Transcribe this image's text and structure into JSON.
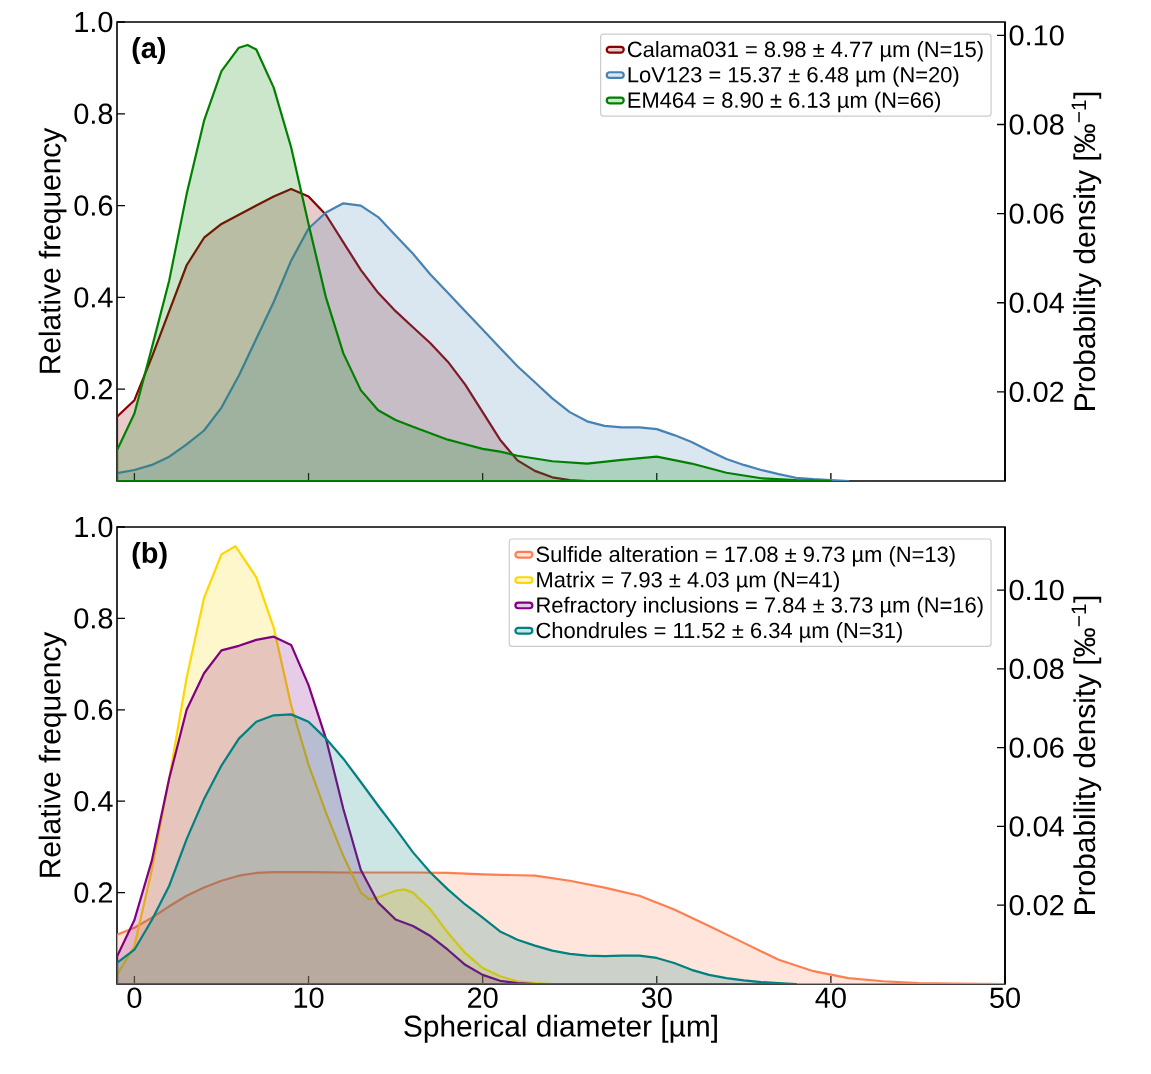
{
  "chart_data": [
    {
      "type": "area",
      "annotations": [
        "(a)"
      ],
      "ylabel": "Relative frequency",
      "y2label": "Probability density [‰$^{−1}$]",
      "xlim": [
        -1,
        50
      ],
      "xticks": [
        0,
        10,
        20,
        30,
        40,
        50
      ],
      "ylim": [
        0,
        1
      ],
      "yticks": [
        0.2,
        0.4,
        0.6,
        0.8,
        {
          "value": 1,
          "label": "1.0"
        }
      ],
      "y2lim": [
        0,
        0.103
      ],
      "y2ticks": [
        0.02,
        0.04,
        0.06,
        0.08,
        {
          "value": 0.1,
          "label": "0.10"
        }
      ],
      "tick_labels": "y",
      "legend": "top right",
      "series": [
        {
          "name": "Calama031 = 8.98 ± 4.77 µm (N=15)",
          "color": "#8b0000",
          "x": [
            -1,
            0,
            1,
            2,
            3,
            4,
            5,
            6,
            7,
            8,
            9,
            10,
            11,
            12,
            13,
            14,
            15,
            16,
            17,
            18,
            19,
            20,
            21,
            22,
            23,
            24,
            25,
            26
          ],
          "values": [
            0.14,
            0.176,
            0.27,
            0.37,
            0.47,
            0.53,
            0.56,
            0.58,
            0.6,
            0.62,
            0.636,
            0.62,
            0.58,
            0.52,
            0.46,
            0.41,
            0.37,
            0.335,
            0.3,
            0.26,
            0.21,
            0.15,
            0.09,
            0.045,
            0.022,
            0.008,
            0.002,
            0
          ]
        },
        {
          "name": "LoV123 = 15.37 ± 6.48 µm (N=20)",
          "color": "#4682b4",
          "x": [
            -1,
            0,
            1,
            2,
            3,
            4,
            5,
            6,
            7,
            8,
            9,
            10,
            11,
            12,
            13,
            14,
            15,
            16,
            17,
            18,
            19,
            20,
            21,
            22,
            23,
            24,
            25,
            26,
            27,
            28,
            29,
            30,
            31,
            32,
            33,
            34,
            35,
            36,
            37,
            38,
            39,
            40,
            41
          ],
          "values": [
            0.017,
            0.024,
            0.035,
            0.053,
            0.08,
            0.11,
            0.16,
            0.23,
            0.31,
            0.39,
            0.48,
            0.55,
            0.585,
            0.605,
            0.6,
            0.575,
            0.535,
            0.495,
            0.45,
            0.41,
            0.37,
            0.33,
            0.29,
            0.25,
            0.215,
            0.18,
            0.15,
            0.13,
            0.12,
            0.117,
            0.117,
            0.113,
            0.1,
            0.085,
            0.066,
            0.048,
            0.035,
            0.024,
            0.015,
            0.007,
            0.004,
            0.002,
            0
          ]
        },
        {
          "name": "EM464 = 8.90 ± 6.13 µm (N=66)",
          "color": "#008000",
          "x": [
            -1,
            0,
            1,
            2,
            3,
            4,
            5,
            6,
            6.5,
            7,
            8,
            9,
            10,
            11,
            12,
            13,
            14,
            15,
            16,
            17,
            18,
            19,
            20,
            21,
            22,
            24,
            26,
            28,
            30,
            32,
            34,
            36,
            38,
            40
          ],
          "values": [
            0.067,
            0.147,
            0.29,
            0.437,
            0.625,
            0.785,
            0.893,
            0.944,
            0.95,
            0.94,
            0.857,
            0.727,
            0.56,
            0.4,
            0.278,
            0.198,
            0.154,
            0.133,
            0.118,
            0.104,
            0.09,
            0.08,
            0.07,
            0.064,
            0.055,
            0.043,
            0.038,
            0.046,
            0.053,
            0.038,
            0.018,
            0.006,
            0.002,
            0
          ]
        }
      ]
    },
    {
      "type": "area",
      "annotations": [
        "(b)"
      ],
      "xlabel": "Spherical diameter [µm]",
      "ylabel": "Relative frequency",
      "y2label": "Probability density [‰$^{−1}$]",
      "xlim": [
        -1,
        50
      ],
      "xticks": [
        0,
        10,
        20,
        30,
        40,
        50
      ],
      "ylim": [
        0,
        1
      ],
      "yticks": [
        0.2,
        0.4,
        0.6,
        0.8,
        {
          "value": 1,
          "label": "1.0"
        }
      ],
      "y2lim": [
        0,
        0.116
      ],
      "y2ticks": [
        0.02,
        0.04,
        0.06,
        0.08,
        {
          "value": 0.1,
          "label": "0.10"
        }
      ],
      "legend": "top right",
      "series": [
        {
          "name": "Sulfide alteration = 17.08 ± 9.73 µm (N=13)",
          "color": "#ff7f50",
          "x": [
            -1,
            0,
            1,
            2,
            3,
            4,
            5,
            6,
            7,
            8,
            10,
            12,
            14,
            16,
            18,
            20,
            22,
            23,
            25,
            27,
            29,
            31,
            33,
            35,
            37,
            39,
            41,
            43,
            45,
            47,
            50
          ],
          "values": [
            0.108,
            0.123,
            0.145,
            0.17,
            0.193,
            0.211,
            0.226,
            0.237,
            0.243,
            0.245,
            0.245,
            0.244,
            0.244,
            0.244,
            0.243,
            0.24,
            0.238,
            0.237,
            0.226,
            0.211,
            0.193,
            0.163,
            0.127,
            0.09,
            0.053,
            0.028,
            0.013,
            0.006,
            0.002,
            0.001,
            0
          ]
        },
        {
          "name": "Matrix = 7.93 ± 4.03 µm (N=41)",
          "color": "#ffd700",
          "x": [
            -1,
            0,
            1,
            2,
            3,
            4,
            5,
            5.8,
            7,
            8,
            9,
            10,
            11,
            12,
            13,
            13.5,
            14,
            15,
            15.5,
            16,
            17,
            18,
            19,
            20,
            21,
            22,
            23,
            24
          ],
          "values": [
            0.02,
            0.083,
            0.25,
            0.45,
            0.67,
            0.845,
            0.94,
            0.958,
            0.89,
            0.78,
            0.61,
            0.48,
            0.375,
            0.28,
            0.2,
            0.185,
            0.19,
            0.204,
            0.207,
            0.2,
            0.163,
            0.112,
            0.068,
            0.035,
            0.017,
            0.006,
            0.002,
            0
          ]
        },
        {
          "name": "Refractory inclusions = 7.84 ± 3.73 µm (N=16)",
          "color": "#800080",
          "x": [
            -1,
            0,
            1,
            2,
            3,
            4,
            5,
            6,
            7,
            8,
            9,
            10,
            11,
            12,
            13,
            14,
            15,
            16,
            17,
            18,
            19,
            20,
            21,
            22,
            23
          ],
          "values": [
            0.06,
            0.14,
            0.27,
            0.45,
            0.6,
            0.68,
            0.73,
            0.74,
            0.753,
            0.76,
            0.742,
            0.654,
            0.537,
            0.383,
            0.25,
            0.178,
            0.141,
            0.127,
            0.105,
            0.075,
            0.042,
            0.02,
            0.007,
            0.002,
            0
          ]
        },
        {
          "name": "Chondrules = 11.52 ± 6.34 µm (N=31)",
          "color": "#008080",
          "x": [
            -1,
            0,
            1,
            2,
            3,
            4,
            5,
            6,
            7,
            8,
            9,
            10,
            11,
            12,
            13,
            14,
            15,
            16,
            17,
            18,
            19,
            20,
            21,
            22,
            23,
            24,
            25,
            26,
            27,
            28,
            29,
            30,
            31,
            32,
            33,
            34,
            35,
            36,
            37,
            38
          ],
          "values": [
            0.046,
            0.075,
            0.14,
            0.215,
            0.317,
            0.405,
            0.478,
            0.537,
            0.574,
            0.588,
            0.59,
            0.574,
            0.537,
            0.493,
            0.442,
            0.39,
            0.34,
            0.288,
            0.244,
            0.207,
            0.174,
            0.145,
            0.115,
            0.097,
            0.084,
            0.073,
            0.066,
            0.062,
            0.061,
            0.062,
            0.062,
            0.057,
            0.046,
            0.031,
            0.02,
            0.013,
            0.008,
            0.004,
            0.002,
            0
          ]
        }
      ]
    }
  ]
}
